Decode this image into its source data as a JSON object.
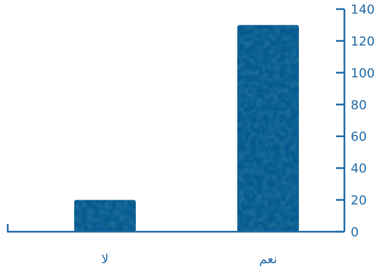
{
  "chart_data": {
    "type": "bar",
    "categories": [
      "لا",
      "نعم"
    ],
    "values": [
      20,
      130
    ],
    "ylim": [
      0,
      140
    ],
    "yticks": [
      0,
      20,
      40,
      60,
      80,
      100,
      120,
      140
    ],
    "y_axis_side": "right",
    "grid": false,
    "legend": "none",
    "title": "",
    "xlabel": "",
    "ylabel": ""
  },
  "colors": {
    "axis": "#1f6aa8",
    "bar": "#0e5a90",
    "bar_dark": "#083d66",
    "label": "#1f6aa8"
  }
}
